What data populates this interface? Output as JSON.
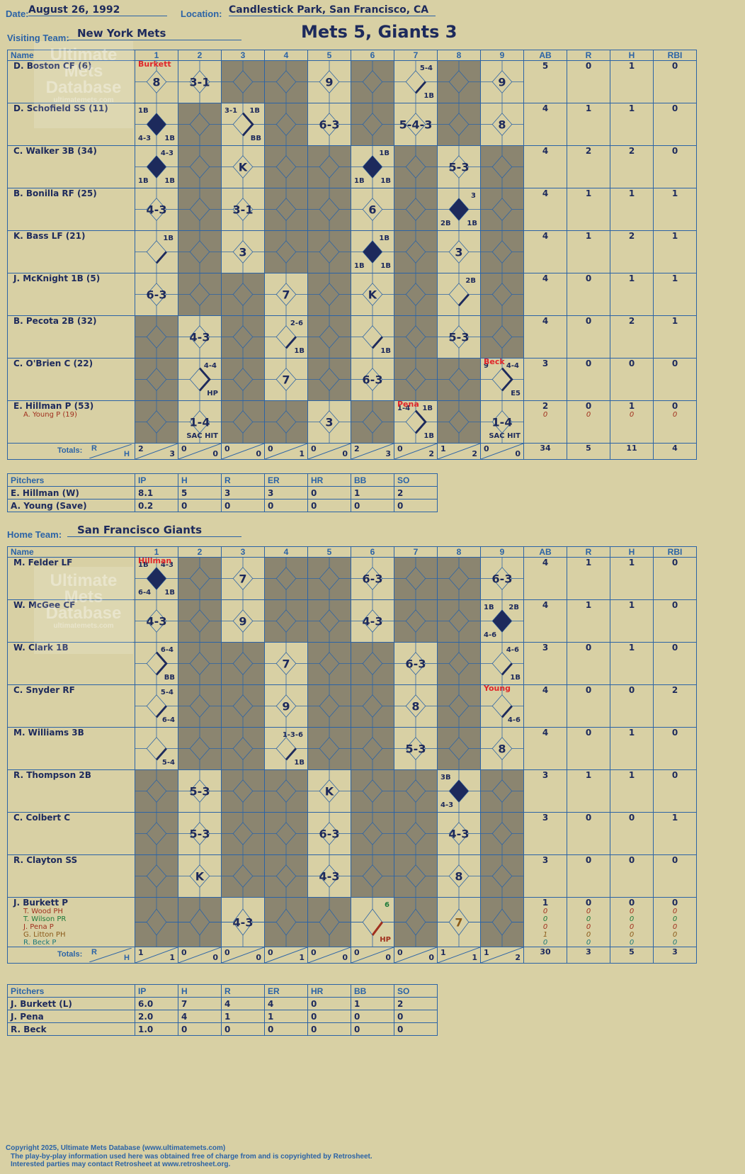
{
  "header": {
    "date_label": "Date:",
    "date": "August 26, 1992",
    "location_label": "Location:",
    "location": "Candlestick Park, San Francisco, CA",
    "visiting_label": "Visiting Team:",
    "visiting_team": "New York Mets",
    "title": "Mets 5, Giants 3",
    "home_label": "Home Team:",
    "home_team": "San Francisco Giants"
  },
  "columns": {
    "name": "Name",
    "innings": [
      "1",
      "2",
      "3",
      "4",
      "5",
      "6",
      "7",
      "8",
      "9"
    ],
    "stats": [
      "AB",
      "R",
      "H",
      "RBI"
    ],
    "totals": "Totals:",
    "r": "R",
    "h": "H"
  },
  "pitcher_columns": [
    "Pitchers",
    "IP",
    "H",
    "R",
    "ER",
    "HR",
    "BB",
    "SO"
  ],
  "watermark": {
    "line1": "Ultimate",
    "line2": "Mets",
    "line3": "Database",
    "url": "ultimatemets.com"
  },
  "visitors": {
    "batters": [
      {
        "name": "D. Boston CF (6)",
        "stats": [
          "5",
          "0",
          "1",
          "0"
        ],
        "cells": [
          {
            "res": "8",
            "pc": "Burkett"
          },
          {
            "res": "3-1"
          },
          {
            "g": true
          },
          {
            "g": true
          },
          {
            "res": "9"
          },
          {
            "g": true
          },
          {
            "run": "single",
            "tr": "5-4",
            "br": "1B"
          },
          {
            "g": true
          },
          {
            "res": "9"
          }
        ]
      },
      {
        "name": "D. Schofield SS (11)",
        "stats": [
          "4",
          "1",
          "1",
          "0"
        ],
        "cells": [
          {
            "scored": true,
            "tl": "1B",
            "bl": "4-3",
            "br": "1B"
          },
          {
            "g": true
          },
          {
            "run": "walk",
            "tl": "3-1",
            "tr": "1B",
            "br": "BB"
          },
          {
            "g": true
          },
          {
            "res": "6-3"
          },
          {
            "g": true
          },
          {
            "res": "5-4-3"
          },
          {
            "g": true
          },
          {
            "res": "8"
          }
        ]
      },
      {
        "name": "C. Walker 3B (34)",
        "stats": [
          "4",
          "2",
          "2",
          "0"
        ],
        "cells": [
          {
            "scored": true,
            "tr": "4-3",
            "bl": "1B",
            "br": "1B"
          },
          {
            "g": true
          },
          {
            "res": "K"
          },
          {
            "g": true
          },
          {
            "g": true
          },
          {
            "scored": true,
            "tr": "1B",
            "bl": "1B",
            "br": "1B"
          },
          {
            "g": true
          },
          {
            "res": "5-3"
          },
          {
            "g": true
          }
        ]
      },
      {
        "name": "B. Bonilla RF (25)",
        "stats": [
          "4",
          "1",
          "1",
          "1"
        ],
        "cells": [
          {
            "res": "4-3"
          },
          {
            "g": true
          },
          {
            "res": "3-1"
          },
          {
            "g": true
          },
          {
            "g": true
          },
          {
            "res": "6"
          },
          {
            "g": true
          },
          {
            "scored": true,
            "tr": "3",
            "bl": "2B",
            "br": "1B"
          },
          {
            "g": true
          }
        ]
      },
      {
        "name": "K. Bass LF (21)",
        "stats": [
          "4",
          "1",
          "2",
          "1"
        ],
        "cells": [
          {
            "run": "single",
            "tr": "1B"
          },
          {
            "g": true
          },
          {
            "res": "3"
          },
          {
            "g": true
          },
          {
            "g": true
          },
          {
            "scored": true,
            "tr": "1B",
            "bl": "1B",
            "br": "1B"
          },
          {
            "g": true
          },
          {
            "res": "3"
          },
          {
            "g": true
          }
        ]
      },
      {
        "name": "J. McKnight 1B (5)",
        "stats": [
          "4",
          "0",
          "1",
          "1"
        ],
        "cells": [
          {
            "res": "6-3"
          },
          {
            "g": true
          },
          {
            "g": true
          },
          {
            "res": "7"
          },
          {
            "g": true
          },
          {
            "res": "K"
          },
          {
            "g": true
          },
          {
            "run": "single",
            "tr": "2B"
          },
          {
            "g": true
          }
        ]
      },
      {
        "name": "B. Pecota 2B (32)",
        "stats": [
          "4",
          "0",
          "2",
          "1"
        ],
        "cells": [
          {
            "g": true
          },
          {
            "res": "4-3"
          },
          {
            "g": true
          },
          {
            "run": "single",
            "tr": "2-6",
            "br": "1B"
          },
          {
            "g": true
          },
          {
            "run": "single",
            "br": "1B"
          },
          {
            "g": true
          },
          {
            "res": "5-3"
          },
          {
            "g": true
          }
        ]
      },
      {
        "name": "C. O'Brien C (22)",
        "stats": [
          "3",
          "0",
          "0",
          "0"
        ],
        "cells": [
          {
            "g": true
          },
          {
            "run": "walk",
            "tr": "4-4",
            "br": "HP"
          },
          {
            "g": true
          },
          {
            "res": "7"
          },
          {
            "g": true
          },
          {
            "res": "6-3"
          },
          {
            "g": true
          },
          {
            "g": true
          },
          {
            "run": "walk",
            "pc": "Beck",
            "tl": "9",
            "tr": "4-4",
            "br": "E5"
          }
        ]
      },
      {
        "name": "E. Hillman P (53)",
        "sub": "A. Young P (19)",
        "stats": [
          "2",
          "0",
          "1",
          "0"
        ],
        "substats": [
          "0",
          "0",
          "0",
          "0"
        ],
        "cells": [
          {
            "g": true
          },
          {
            "res": "1-4",
            "br": "SAC HIT"
          },
          {
            "g": true
          },
          {
            "g": true
          },
          {
            "res": "3"
          },
          {
            "g": true
          },
          {
            "run": "walk",
            "pc": "Pena",
            "tl": "1-4",
            "tr": "1B",
            "br": "1B"
          },
          {
            "g": true
          },
          {
            "res": "1-4",
            "br": "SAC HIT"
          }
        ]
      }
    ],
    "totals": [
      [
        "2",
        "3"
      ],
      [
        "0",
        "0"
      ],
      [
        "0",
        "0"
      ],
      [
        "0",
        "1"
      ],
      [
        "0",
        "0"
      ],
      [
        "2",
        "3"
      ],
      [
        "0",
        "2"
      ],
      [
        "1",
        "2"
      ],
      [
        "0",
        "0"
      ]
    ],
    "total_stats": [
      "34",
      "5",
      "11",
      "4"
    ],
    "pitchers": [
      {
        "name": "E. Hillman (W)",
        "stats": [
          "8.1",
          "5",
          "3",
          "3",
          "0",
          "1",
          "2"
        ]
      },
      {
        "name": "A. Young (Save)",
        "stats": [
          "0.2",
          "0",
          "0",
          "0",
          "0",
          "0",
          "0"
        ]
      }
    ]
  },
  "home": {
    "batters": [
      {
        "name": "M. Felder LF",
        "stats": [
          "4",
          "1",
          "1",
          "0"
        ],
        "cells": [
          {
            "scored": true,
            "pc": "Hillman",
            "tl": "1B",
            "tr": "4-3",
            "bl": "6-4",
            "br": "1B"
          },
          {
            "g": true
          },
          {
            "res": "7"
          },
          {
            "g": true
          },
          {
            "g": true
          },
          {
            "res": "6-3"
          },
          {
            "g": true
          },
          {
            "g": true
          },
          {
            "res": "6-3"
          }
        ]
      },
      {
        "name": "W. McGee CF",
        "stats": [
          "4",
          "1",
          "1",
          "0"
        ],
        "cells": [
          {
            "res": "4-3"
          },
          {
            "g": true
          },
          {
            "res": "9"
          },
          {
            "g": true
          },
          {
            "g": true
          },
          {
            "res": "4-3"
          },
          {
            "g": true
          },
          {
            "g": true
          },
          {
            "scored": true,
            "tl": "1B",
            "tr": "2B",
            "bl": "4-6"
          }
        ]
      },
      {
        "name": "W. Clark 1B",
        "stats": [
          "3",
          "0",
          "1",
          "0"
        ],
        "cells": [
          {
            "run": "walk",
            "tr": "6-4",
            "br": "BB"
          },
          {
            "g": true
          },
          {
            "g": true
          },
          {
            "res": "7"
          },
          {
            "g": true
          },
          {
            "g": true
          },
          {
            "res": "6-3"
          },
          {
            "g": true
          },
          {
            "run": "single",
            "tr": "4-6",
            "br": "1B"
          }
        ]
      },
      {
        "name": "C. Snyder RF",
        "stats": [
          "4",
          "0",
          "0",
          "2"
        ],
        "cells": [
          {
            "run": "single",
            "tr": "5-4",
            "br": "6-4"
          },
          {
            "g": true
          },
          {
            "g": true
          },
          {
            "res": "9"
          },
          {
            "g": true
          },
          {
            "g": true
          },
          {
            "res": "8"
          },
          {
            "g": true
          },
          {
            "run": "single",
            "pc": "Young",
            "br": "4-6"
          }
        ]
      },
      {
        "name": "M. Williams 3B",
        "stats": [
          "4",
          "0",
          "1",
          "0"
        ],
        "cells": [
          {
            "run": "single",
            "br": "5-4"
          },
          {
            "g": true
          },
          {
            "g": true
          },
          {
            "run": "single",
            "tr": "1-3-6",
            "br": "1B"
          },
          {
            "g": true
          },
          {
            "g": true
          },
          {
            "res": "5-3"
          },
          {
            "g": true
          },
          {
            "res": "8"
          }
        ]
      },
      {
        "name": "R. Thompson 2B",
        "stats": [
          "3",
          "1",
          "1",
          "0"
        ],
        "cells": [
          {
            "g": true
          },
          {
            "res": "5-3"
          },
          {
            "g": true
          },
          {
            "g": true
          },
          {
            "res": "K"
          },
          {
            "g": true
          },
          {
            "g": true
          },
          {
            "scored": true,
            "tl": "3B",
            "bl": "4-3"
          },
          {
            "g": true
          }
        ]
      },
      {
        "name": "C. Colbert C",
        "stats": [
          "3",
          "0",
          "0",
          "1"
        ],
        "cells": [
          {
            "g": true
          },
          {
            "res": "5-3"
          },
          {
            "g": true
          },
          {
            "g": true
          },
          {
            "res": "6-3"
          },
          {
            "g": true
          },
          {
            "g": true
          },
          {
            "res": "4-3"
          },
          {
            "g": true
          }
        ]
      },
      {
        "name": "R. Clayton SS",
        "stats": [
          "3",
          "0",
          "0",
          "0"
        ],
        "cells": [
          {
            "g": true
          },
          {
            "res": "K"
          },
          {
            "g": true
          },
          {
            "g": true
          },
          {
            "res": "4-3"
          },
          {
            "g": true
          },
          {
            "g": true
          },
          {
            "res": "8"
          },
          {
            "g": true
          }
        ]
      },
      {
        "name": "J. Burkett P",
        "subs": [
          {
            "name": "T. Wood PH",
            "color": "#a0301e"
          },
          {
            "name": "T. Wilson PR",
            "color": "#1e7a3a"
          },
          {
            "name": "J. Pena P",
            "color": "#a0301e"
          },
          {
            "name": "G. Litton PH",
            "color": "#8a5a1a"
          },
          {
            "name": "R. Beck P",
            "color": "#1e7a7a"
          }
        ],
        "stats": [
          "1",
          "0",
          "0",
          "0"
        ],
        "substats": [
          [
            "0",
            "0",
            "0",
            "0"
          ],
          [
            "0",
            "0",
            "0",
            "0"
          ],
          [
            "0",
            "0",
            "0",
            "0"
          ],
          [
            "1",
            "0",
            "0",
            "0"
          ],
          [
            "0",
            "0",
            "0",
            "0"
          ]
        ],
        "cells": [
          {
            "g": true
          },
          {
            "g": true
          },
          {
            "res": "4-3"
          },
          {
            "g": true
          },
          {
            "g": true
          },
          {
            "run": "hp",
            "tr": "6",
            "br": "HP"
          },
          {
            "g": true
          },
          {
            "res": "7",
            "color": "#8a5a1a"
          },
          {
            "g": true
          }
        ]
      }
    ],
    "totals": [
      [
        "1",
        "1"
      ],
      [
        "0",
        "0"
      ],
      [
        "0",
        "0"
      ],
      [
        "0",
        "1"
      ],
      [
        "0",
        "0"
      ],
      [
        "0",
        "0"
      ],
      [
        "0",
        "0"
      ],
      [
        "1",
        "1"
      ],
      [
        "1",
        "2"
      ]
    ],
    "total_stats": [
      "30",
      "3",
      "5",
      "3"
    ],
    "pitchers": [
      {
        "name": "J. Burkett (L)",
        "stats": [
          "6.0",
          "7",
          "4",
          "4",
          "0",
          "1",
          "2"
        ]
      },
      {
        "name": "J. Pena",
        "stats": [
          "2.0",
          "4",
          "1",
          "1",
          "0",
          "0",
          "0"
        ]
      },
      {
        "name": "R. Beck",
        "stats": [
          "1.0",
          "0",
          "0",
          "0",
          "0",
          "0",
          "0"
        ]
      }
    ]
  },
  "footer": {
    "line1": "Copyright 2025, Ultimate Mets Database (www.ultimatemets.com)",
    "line2": "The play-by-play information used here was obtained free of charge from and is copyrighted by Retrosheet.",
    "line3": "Interested parties may contact Retrosheet at www.retrosheet.org."
  }
}
